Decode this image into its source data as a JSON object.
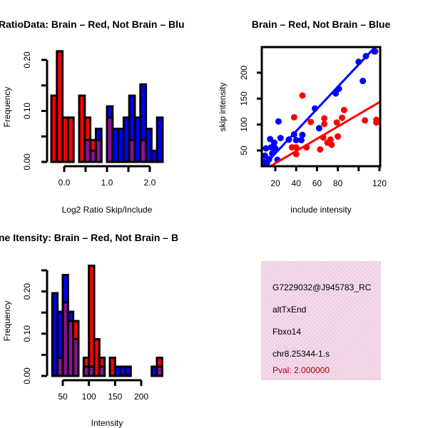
{
  "colors": {
    "red": "#ff0000",
    "blue": "#0000ff",
    "overlap": "#93109c",
    "dark_red": "#b00000",
    "box_bg": "#f6d8ef"
  },
  "chart_data": [
    {
      "type": "bar",
      "title": "RatioData: Brain – Red, Not Brain – Blu",
      "xlabel": "Log2 Ratio Skip/Include",
      "ylabel": "Frequency",
      "bin_start": -0.3,
      "bin_width": 0.13,
      "xticks": [
        0.0,
        0.5,
        1.0,
        1.5,
        2.0
      ],
      "xtick_labels": [
        "0.0",
        "1.0",
        "2.0"
      ],
      "xtick_label_values": [
        0.0,
        1.0,
        2.0
      ],
      "yticks": [
        0,
        0.05,
        0.1,
        0.15,
        0.2
      ],
      "ytick_labels": [
        "0.00",
        "0.10",
        "0.20"
      ],
      "ytick_label_values": [
        0,
        0.1,
        0.2
      ],
      "series": [
        {
          "name": "Brain",
          "color": "red",
          "values": [
            0.13,
            0.217,
            0.087,
            0.087,
            0,
            0.13,
            0.087,
            0.043,
            0.043,
            0,
            0.087,
            0,
            0,
            0,
            0.043,
            0,
            0.043,
            0,
            0,
            0
          ]
        },
        {
          "name": "Not Brain",
          "color": "blue",
          "values": [
            0,
            0,
            0,
            0,
            0,
            0,
            0.043,
            0.022,
            0.065,
            0,
            0.109,
            0.065,
            0.065,
            0.087,
            0.13,
            0.087,
            0.152,
            0.065,
            0.022,
            0.087
          ]
        }
      ]
    },
    {
      "type": "scatter",
      "title": "Brain – Red, Not Brain – Blue",
      "xlabel": "include intensity",
      "ylabel": "skip intensity",
      "xlim": [
        7.7,
        120.6
      ],
      "ylim": [
        19.7,
        249
      ],
      "xtick_labels": [
        "20",
        "40",
        "60",
        "80",
        "120"
      ],
      "xtick_label_values": [
        20,
        40,
        60,
        80,
        120
      ],
      "xticks": [
        20,
        40,
        60,
        80,
        100,
        120
      ],
      "ytick_labels": [
        "50",
        "100",
        "150",
        "200"
      ],
      "ytick_label_values": [
        50,
        100,
        150,
        200
      ],
      "series": [
        {
          "name": "Brain",
          "color": "red",
          "points": [
            [
              116,
              241
            ],
            [
              46,
              156
            ],
            [
              38,
              114
            ],
            [
              54,
              105
            ],
            [
              67,
              112
            ],
            [
              67,
              101
            ],
            [
              86,
              128
            ],
            [
              84,
              113
            ],
            [
              79,
              104
            ],
            [
              106,
              108
            ],
            [
              117,
              109
            ],
            [
              117,
              104
            ],
            [
              80,
              77
            ],
            [
              66,
              75
            ],
            [
              73,
              71
            ],
            [
              70,
              65
            ],
            [
              74,
              61
            ],
            [
              63,
              52
            ],
            [
              50,
              56
            ],
            [
              40,
              56
            ],
            [
              36,
              56
            ],
            [
              40,
              43
            ]
          ],
          "fit": {
            "slope": 1.18,
            "intercept": 1.7
          }
        },
        {
          "name": "Not Brain",
          "color": "blue",
          "points": [
            [
              115,
              241
            ],
            [
              107,
              232
            ],
            [
              100,
              221
            ],
            [
              104,
              184
            ],
            [
              81,
              169
            ],
            [
              78,
              160
            ],
            [
              58,
              131
            ],
            [
              62,
              93
            ],
            [
              46,
              80
            ],
            [
              45,
              70
            ],
            [
              40,
              70
            ],
            [
              38,
              81
            ],
            [
              33,
              71
            ],
            [
              25,
              74
            ],
            [
              23,
              106
            ],
            [
              22,
              32
            ],
            [
              15,
              72
            ],
            [
              19,
              65
            ],
            [
              16,
              56
            ],
            [
              11,
              54
            ],
            [
              20,
              54
            ],
            [
              17,
              44
            ],
            [
              10,
              40
            ],
            [
              14,
              33
            ],
            [
              12,
              26
            ],
            [
              9,
              28
            ]
          ],
          "fit": {
            "slope": 2.14,
            "intercept": 1.7
          }
        }
      ]
    },
    {
      "type": "bar",
      "title": "ne Itensity: Brain – Red, Not Brain – B",
      "xlabel": "Intensity",
      "ylabel": "Frequency",
      "bin_start": 30,
      "bin_width": 10,
      "xticks": [
        50,
        100,
        150,
        200
      ],
      "xtick_labels": [
        "50",
        "100",
        "150",
        "200"
      ],
      "xtick_label_values": [
        50,
        100,
        150,
        200
      ],
      "yticks": [
        0,
        0.05,
        0.1,
        0.15,
        0.2,
        0.25
      ],
      "ytick_labels": [
        "0.00",
        "0.10",
        "0.20"
      ],
      "ytick_label_values": [
        0,
        0.1,
        0.2
      ],
      "series": [
        {
          "name": "Brain",
          "color": "red",
          "values": [
            0,
            0.043,
            0.174,
            0.13,
            0.13,
            0,
            0.043,
            0.261,
            0.087,
            0.043,
            0,
            0.043,
            0,
            0,
            0,
            0,
            0,
            0,
            0,
            0,
            0.043
          ]
        },
        {
          "name": "Not Brain",
          "color": "blue",
          "values": [
            0.196,
            0.152,
            0.239,
            0.152,
            0.087,
            0,
            0.022,
            0.022,
            0,
            0.022,
            0,
            0,
            0.022,
            0.022,
            0.022,
            0,
            0,
            0,
            0,
            0.022,
            0.022
          ]
        }
      ]
    }
  ],
  "info_box": {
    "id": "G7229032@J945783_RC",
    "event": "altTxEnd",
    "gene": "Fbxo14",
    "locus": "chr8.25344-1.s",
    "pval": "Pval: 2.000000"
  }
}
